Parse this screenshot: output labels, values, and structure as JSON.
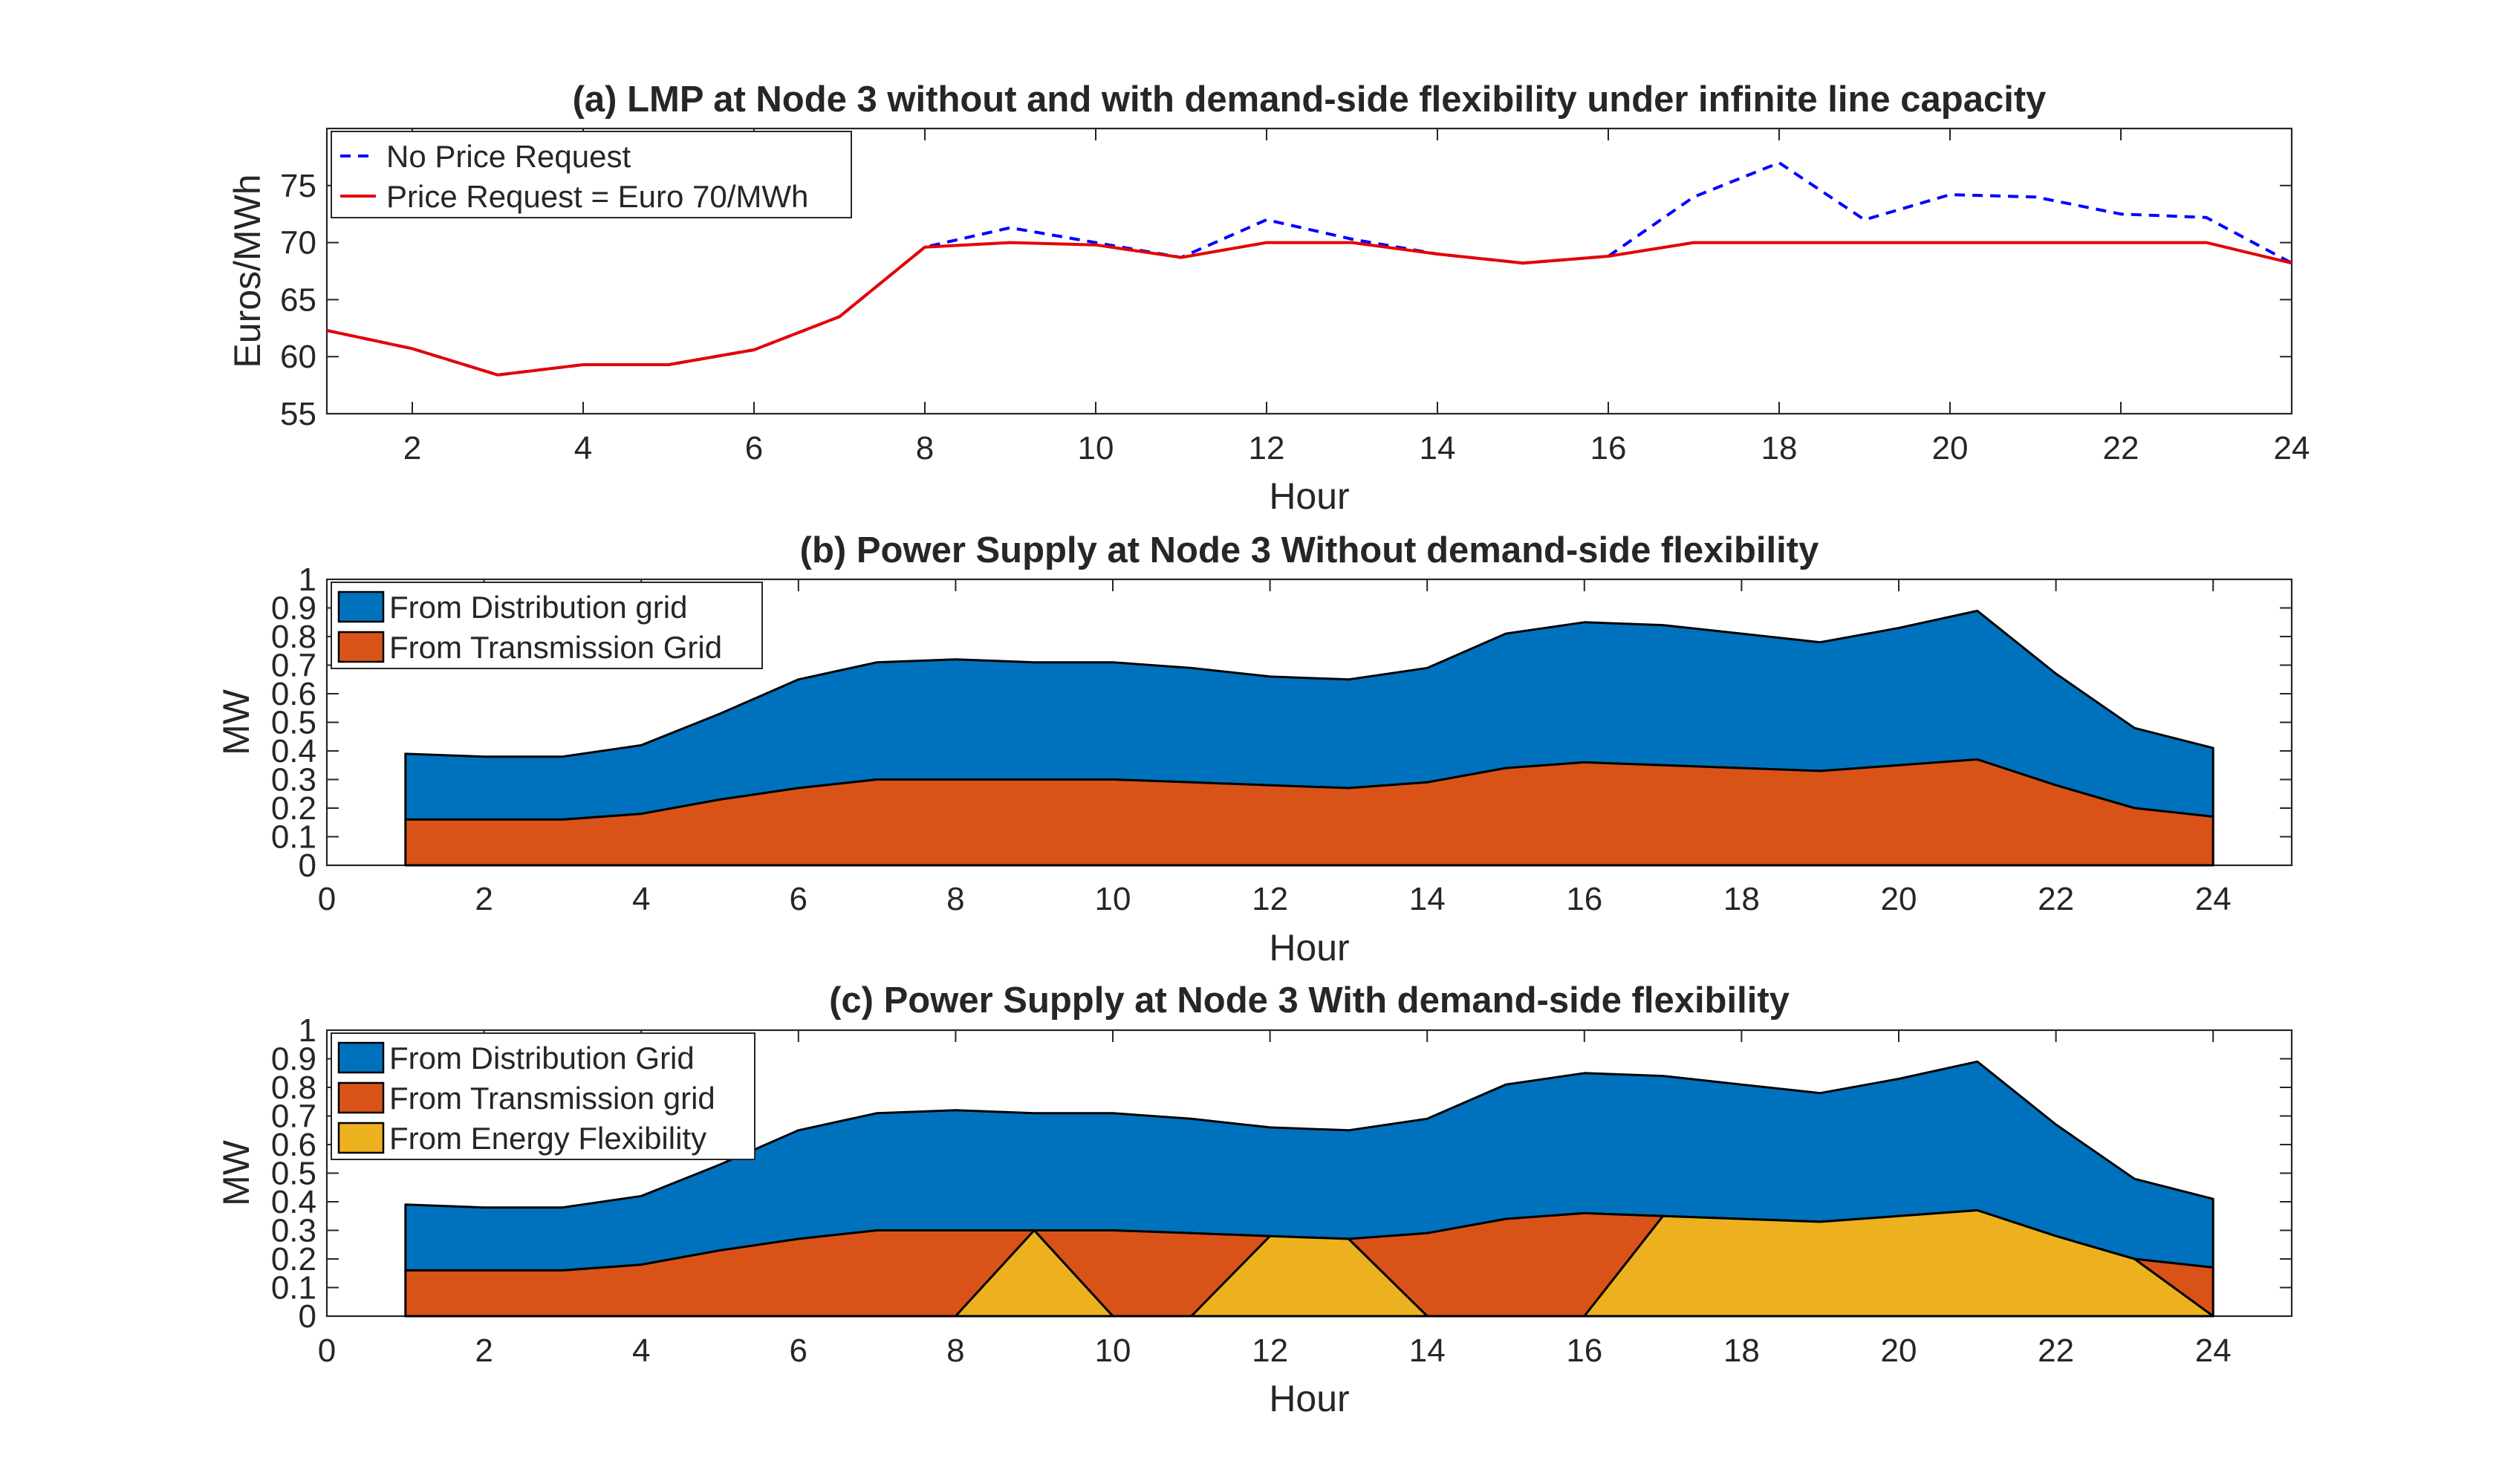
{
  "chart_data": [
    {
      "id": "a",
      "type": "line",
      "title": "(a) LMP at Node 3 without and with demand-side flexibility under infinite line capacity",
      "xlabel": "Hour",
      "ylabel": "Euros/MWh",
      "xlim": [
        1,
        24
      ],
      "ylim": [
        55,
        80
      ],
      "xticks": [
        2,
        4,
        6,
        8,
        10,
        12,
        14,
        16,
        18,
        20,
        22,
        24
      ],
      "yticks": [
        55,
        60,
        65,
        70,
        75
      ],
      "x": [
        1,
        2,
        3,
        4,
        5,
        6,
        7,
        8,
        9,
        10,
        11,
        12,
        13,
        14,
        15,
        16,
        17,
        18,
        19,
        20,
        21,
        22,
        23,
        24
      ],
      "series": [
        {
          "name": "No Price Request",
          "style": "dashed",
          "color": "#0000ff",
          "values": [
            62.3,
            60.7,
            58.4,
            59.3,
            59.3,
            60.6,
            63.5,
            69.6,
            71.3,
            70.0,
            68.7,
            72.0,
            70.3,
            69.0,
            68.2,
            68.8,
            74.0,
            77.0,
            72.0,
            74.2,
            74.0,
            72.5,
            72.2,
            68.2
          ]
        },
        {
          "name": "Price Request = Euro 70/MWh",
          "style": "solid",
          "color": "#e60000",
          "values": [
            62.3,
            60.7,
            58.4,
            59.3,
            59.3,
            60.6,
            63.5,
            69.6,
            70.0,
            69.8,
            68.7,
            70.0,
            70.0,
            69.0,
            68.2,
            68.8,
            70.0,
            70.0,
            70.0,
            70.0,
            70.0,
            70.0,
            70.0,
            68.2
          ]
        }
      ]
    },
    {
      "id": "b",
      "type": "area",
      "stacked": true,
      "title": "(b) Power Supply at Node 3 Without demand-side flexibility",
      "xlabel": "Hour",
      "ylabel": "MW",
      "xlim": [
        0,
        25
      ],
      "ylim": [
        0,
        1
      ],
      "xticks": [
        0,
        2,
        4,
        6,
        8,
        10,
        12,
        14,
        16,
        18,
        20,
        22,
        24
      ],
      "yticks": [
        0,
        0.1,
        0.2,
        0.3,
        0.4,
        0.5,
        0.6,
        0.7,
        0.8,
        0.9,
        1
      ],
      "ytick_labels": [
        "0",
        "0.1",
        "0.2",
        "0.3",
        "0.4",
        "0.5",
        "0.6",
        "0.7",
        "0.8",
        "0.9",
        "1"
      ],
      "x": [
        1,
        2,
        3,
        4,
        5,
        6,
        7,
        8,
        9,
        10,
        11,
        12,
        13,
        14,
        15,
        16,
        17,
        18,
        19,
        20,
        21,
        22,
        23,
        24
      ],
      "series": [
        {
          "name": "From Distribution grid",
          "color": "#0072bd",
          "values": [
            0.23,
            0.22,
            0.22,
            0.24,
            0.3,
            0.38,
            0.41,
            0.42,
            0.41,
            0.41,
            0.4,
            0.38,
            0.38,
            0.4,
            0.47,
            0.49,
            0.49,
            0.47,
            0.45,
            0.48,
            0.52,
            0.39,
            0.28,
            0.24
          ]
        },
        {
          "name": "From Transmission Grid",
          "color": "#d95319",
          "values": [
            0.16,
            0.16,
            0.16,
            0.18,
            0.23,
            0.27,
            0.3,
            0.3,
            0.3,
            0.3,
            0.29,
            0.28,
            0.27,
            0.29,
            0.34,
            0.36,
            0.35,
            0.34,
            0.33,
            0.35,
            0.37,
            0.28,
            0.2,
            0.17
          ]
        }
      ]
    },
    {
      "id": "c",
      "type": "area",
      "stacked": true,
      "title": "(c) Power Supply at Node 3 With demand-side flexibility",
      "xlabel": "Hour",
      "ylabel": "MW",
      "xlim": [
        0,
        25
      ],
      "ylim": [
        0,
        1
      ],
      "xticks": [
        0,
        2,
        4,
        6,
        8,
        10,
        12,
        14,
        16,
        18,
        20,
        22,
        24
      ],
      "yticks": [
        0,
        0.1,
        0.2,
        0.3,
        0.4,
        0.5,
        0.6,
        0.7,
        0.8,
        0.9,
        1
      ],
      "ytick_labels": [
        "0",
        "0.1",
        "0.2",
        "0.3",
        "0.4",
        "0.5",
        "0.6",
        "0.7",
        "0.8",
        "0.9",
        "1"
      ],
      "x": [
        1,
        2,
        3,
        4,
        5,
        6,
        7,
        8,
        9,
        10,
        11,
        12,
        13,
        14,
        15,
        16,
        17,
        18,
        19,
        20,
        21,
        22,
        23,
        24
      ],
      "series": [
        {
          "name": "From Distribution Grid",
          "color": "#0072bd",
          "values": [
            0.23,
            0.22,
            0.22,
            0.24,
            0.3,
            0.38,
            0.41,
            0.42,
            0.41,
            0.41,
            0.4,
            0.38,
            0.38,
            0.4,
            0.47,
            0.49,
            0.49,
            0.47,
            0.45,
            0.48,
            0.52,
            0.39,
            0.28,
            0.24
          ]
        },
        {
          "name": "From Transmission grid",
          "color": "#d95319",
          "values": [
            0.16,
            0.16,
            0.16,
            0.18,
            0.23,
            0.27,
            0.3,
            0.3,
            0,
            0.3,
            0.29,
            0,
            0,
            0.29,
            0.34,
            0.36,
            0,
            0,
            0,
            0,
            0,
            0,
            0,
            0.17
          ]
        },
        {
          "name": "From Energy Flexibility",
          "color": "#edb120",
          "values": [
            0,
            0,
            0,
            0,
            0,
            0,
            0,
            0,
            0.3,
            0,
            0,
            0.28,
            0.27,
            0,
            0,
            0,
            0.35,
            0.34,
            0.33,
            0.35,
            0.37,
            0.28,
            0.2,
            0
          ]
        }
      ]
    }
  ]
}
